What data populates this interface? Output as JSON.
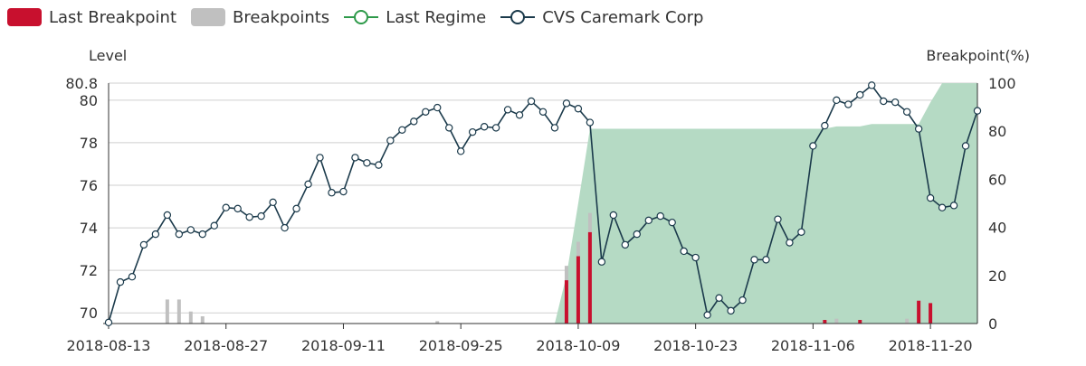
{
  "legend": {
    "items": [
      {
        "label": "Last Breakpoint",
        "kind": "swatch",
        "color": "#c8102e"
      },
      {
        "label": "Breakpoints",
        "kind": "swatch",
        "color": "#c0c0c0"
      },
      {
        "label": "Last Regime",
        "kind": "line",
        "color": "#2e9a4a"
      },
      {
        "label": "CVS Caremark Corp",
        "kind": "line",
        "color": "#1b3a4b"
      }
    ]
  },
  "chart_data": {
    "type": "line",
    "title": "",
    "y_left_label": "Level",
    "y_right_label": "Breakpoint(%)",
    "ylim_left": [
      69.5,
      80.8
    ],
    "ylim_right": [
      0,
      100
    ],
    "left_ticks": [
      70,
      72,
      74,
      76,
      78,
      80,
      80.8
    ],
    "right_ticks": [
      0,
      20,
      40,
      60,
      80,
      100
    ],
    "x_tick_labels": [
      "2018-08-13",
      "2018-08-27",
      "2018-09-11",
      "2018-09-25",
      "2018-10-09",
      "2018-10-23",
      "2018-11-06",
      "2018-11-20"
    ],
    "x_tick_index": [
      0,
      10,
      20,
      30,
      40,
      50,
      60,
      70
    ],
    "grid": true,
    "legend_position": "top-left",
    "colors": {
      "line": "#1b3a4b",
      "regime_fill": "#b5dac4",
      "last_breakpoint": "#c8102e",
      "breakpoints": "#c0c0c0"
    },
    "series": [
      {
        "name": "CVS Caremark Corp",
        "values": [
          69.55,
          71.45,
          71.7,
          73.2,
          73.7,
          74.6,
          73.7,
          73.9,
          73.7,
          74.1,
          74.95,
          74.9,
          74.5,
          74.55,
          75.2,
          74.0,
          74.9,
          76.05,
          77.3,
          75.65,
          75.7,
          77.3,
          77.05,
          76.95,
          78.1,
          78.6,
          79.0,
          79.45,
          79.65,
          78.7,
          77.6,
          78.5,
          78.75,
          78.7,
          79.55,
          79.3,
          79.95,
          79.45,
          78.7,
          79.85,
          79.6,
          78.95,
          72.4,
          74.6,
          73.2,
          73.7,
          74.35,
          74.55,
          74.25,
          72.9,
          72.6,
          69.9,
          70.7,
          70.1,
          70.6,
          72.5,
          72.5,
          74.4,
          73.3,
          73.8,
          77.85,
          78.8,
          80.0,
          79.8,
          80.25,
          80.7,
          79.95,
          79.9,
          79.45,
          78.65,
          75.4,
          74.95,
          75.05,
          77.85,
          79.5
        ]
      }
    ],
    "regime_percent": [
      0,
      0,
      0,
      0,
      0,
      0,
      0,
      0,
      0,
      0,
      0,
      0,
      0,
      0,
      0,
      0,
      0,
      0,
      0,
      0,
      0,
      0,
      0,
      0,
      0,
      0,
      0,
      0,
      0,
      0,
      0,
      0,
      0,
      0,
      0,
      0,
      0,
      0,
      0,
      20,
      50,
      81,
      81,
      81,
      81,
      81,
      81,
      81,
      81,
      81,
      81,
      81,
      81,
      81,
      81,
      81,
      81,
      81,
      81,
      81,
      81,
      81,
      82,
      82,
      82,
      83,
      83,
      83,
      83,
      83,
      92,
      100,
      100,
      100,
      100
    ],
    "breakpoints_grey": [
      {
        "index": 5,
        "percent": 10
      },
      {
        "index": 6,
        "percent": 10
      },
      {
        "index": 7,
        "percent": 5
      },
      {
        "index": 8,
        "percent": 3
      },
      {
        "index": 28,
        "percent": 1
      },
      {
        "index": 39,
        "percent": 24
      },
      {
        "index": 40,
        "percent": 34
      },
      {
        "index": 41,
        "percent": 46
      },
      {
        "index": 62,
        "percent": 2
      },
      {
        "index": 68,
        "percent": 2
      }
    ],
    "breakpoints_last": [
      {
        "index": 39,
        "percent": 18
      },
      {
        "index": 40,
        "percent": 28
      },
      {
        "index": 41,
        "percent": 38
      },
      {
        "index": 61,
        "percent": 1.5
      },
      {
        "index": 64,
        "percent": 1.5
      },
      {
        "index": 69,
        "percent": 9.5
      },
      {
        "index": 70,
        "percent": 8.5
      }
    ]
  }
}
